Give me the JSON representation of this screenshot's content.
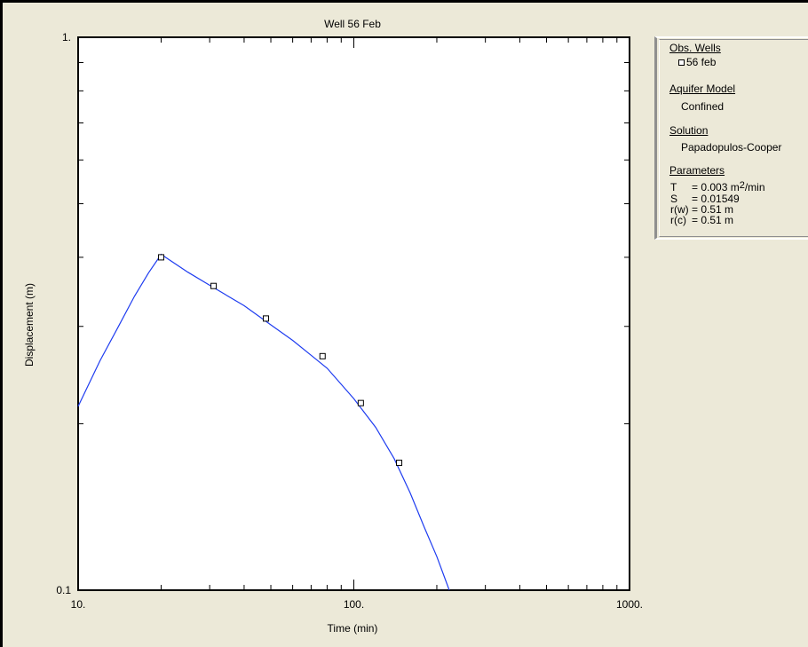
{
  "chart_data": {
    "type": "line",
    "title": "Well 56 Feb",
    "xlabel": "Time (min)",
    "ylabel": "Displacement (m)",
    "xscale": "log",
    "yscale": "log",
    "xlim": [
      10,
      1000
    ],
    "ylim": [
      0.1,
      1
    ],
    "x_tick_labels": [
      "10.",
      "100.",
      "1000."
    ],
    "y_tick_labels": [
      "0.1",
      "1."
    ],
    "series": [
      {
        "name": "56 feb",
        "marker": "square",
        "x": [
          20,
          31,
          48,
          77,
          106,
          146
        ],
        "y": [
          0.4,
          0.355,
          0.31,
          0.265,
          0.218,
          0.17
        ]
      }
    ],
    "fit_curve": {
      "color": "#1e3cf0",
      "x": [
        10,
        12,
        14,
        16,
        18,
        20,
        25,
        30,
        40,
        50,
        60,
        70,
        80,
        100,
        120,
        140,
        160,
        180,
        200,
        222
      ],
      "y": [
        0.215,
        0.26,
        0.3,
        0.34,
        0.375,
        0.405,
        0.376,
        0.356,
        0.327,
        0.302,
        0.283,
        0.266,
        0.252,
        0.222,
        0.197,
        0.173,
        0.15,
        0.13,
        0.115,
        0.1
      ]
    },
    "grid": false,
    "legend_position": "right"
  },
  "legend": {
    "obs_wells_heading": "Obs. Wells",
    "obs_well_name": "56 feb",
    "aquifer_model_heading": "Aquifer Model",
    "aquifer_model": "Confined",
    "solution_heading": "Solution",
    "solution": "Papadopulos-Cooper",
    "parameters_heading": "Parameters",
    "params": [
      {
        "name": "T",
        "value": "= 0.003 m",
        "sup": "2",
        "suffix": "/min"
      },
      {
        "name": "S",
        "value": "= 0.01549",
        "sup": "",
        "suffix": ""
      },
      {
        "name": "r(w)",
        "value": "= 0.51 m",
        "sup": "",
        "suffix": ""
      },
      {
        "name": "r(c)",
        "value": "= 0.51 m",
        "sup": "",
        "suffix": ""
      }
    ]
  },
  "colors": {
    "background": "#ece9d8",
    "plot_background": "#ffffff",
    "fit_curve": "#1e3cf0",
    "axes": "#000000"
  }
}
